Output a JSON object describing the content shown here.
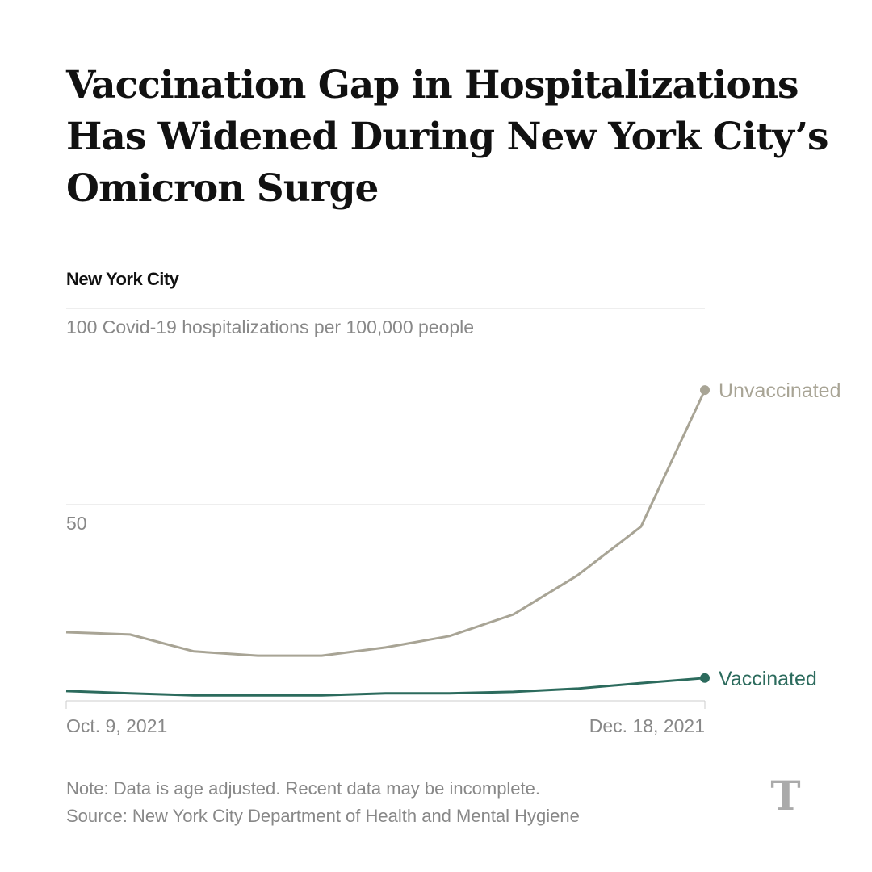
{
  "title": "Vaccination Gap in Hospitalizations Has Widened During New York City’s Omicron Surge",
  "subtitle": "New York City",
  "chart_data": {
    "type": "line",
    "title": "Vaccination Gap in Hospitalizations Has Widened During New York City’s Omicron Surge",
    "ylabel": "100 Covid-19 hospitalizations per 100,000 people",
    "y_tick_labels": [
      "100 Covid-19 hospitalizations per 100,000 people",
      "50"
    ],
    "y_ticks": [
      100,
      50
    ],
    "ylim": [
      0,
      100
    ],
    "x_tick_labels": [
      "Oct. 9, 2021",
      "Dec. 18, 2021"
    ],
    "x": [
      "Oct. 9, 2021",
      "Oct. 16, 2021",
      "Oct. 23, 2021",
      "Oct. 30, 2021",
      "Nov. 6, 2021",
      "Nov. 13, 2021",
      "Nov. 20, 2021",
      "Nov. 27, 2021",
      "Dec. 4, 2021",
      "Dec. 11, 2021",
      "Dec. 18, 2021"
    ],
    "grid": true,
    "series": [
      {
        "name": "Unvaccinated",
        "color": "#a8a495",
        "values": [
          17.5,
          16.9,
          12.6,
          11.5,
          11.5,
          13.6,
          16.5,
          22.0,
          31.9,
          44.4,
          79.2
        ]
      },
      {
        "name": "Vaccinated",
        "color": "#2c6b5d",
        "values": [
          2.5,
          1.9,
          1.4,
          1.4,
          1.4,
          1.9,
          1.9,
          2.3,
          3.1,
          4.5,
          5.8
        ]
      }
    ]
  },
  "note": "Note: Data is age adjusted. Recent data may be incomplete.",
  "source": "Source: New York City Department of Health and Mental Hygiene",
  "logo": "T"
}
